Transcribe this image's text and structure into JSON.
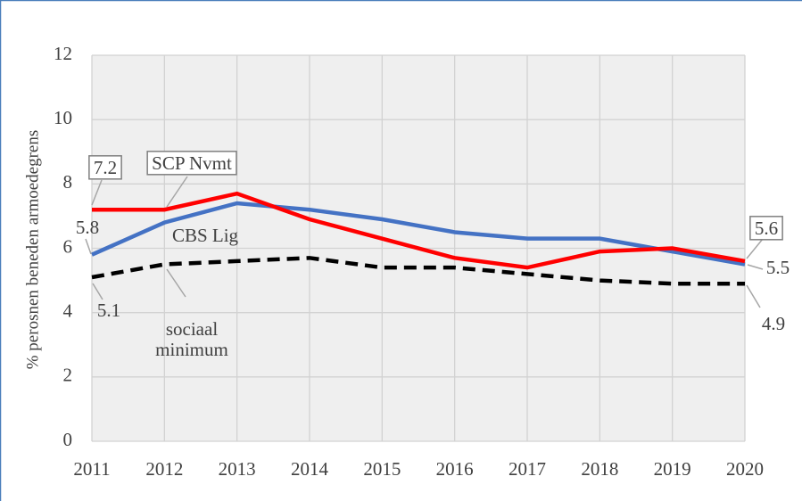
{
  "chart_data": {
    "type": "line",
    "y_label": "% perosnen beneden  armoedegrens",
    "categories": [
      "2011",
      "2012",
      "2013",
      "2014",
      "2015",
      "2016",
      "2017",
      "2018",
      "2019",
      "2020"
    ],
    "series": [
      {
        "name": "SCP Nvmt",
        "color": "#ff0000",
        "values": [
          7.2,
          7.2,
          7.7,
          6.9,
          6.3,
          5.7,
          5.4,
          5.9,
          6.0,
          5.6
        ]
      },
      {
        "name": "CBS Lig",
        "color": "#4472c4",
        "values": [
          5.8,
          6.8,
          7.4,
          7.2,
          6.9,
          6.5,
          6.3,
          6.3,
          5.9,
          5.5
        ]
      },
      {
        "name": "sociaal minimum",
        "color": "#000000",
        "dashed": true,
        "values": [
          5.1,
          5.5,
          5.6,
          5.7,
          5.4,
          5.4,
          5.2,
          5.0,
          4.9,
          4.9
        ]
      }
    ],
    "ylim": [
      0,
      12
    ],
    "yticks": [
      0,
      2,
      4,
      6,
      8,
      10,
      12
    ],
    "grid": true
  }
}
